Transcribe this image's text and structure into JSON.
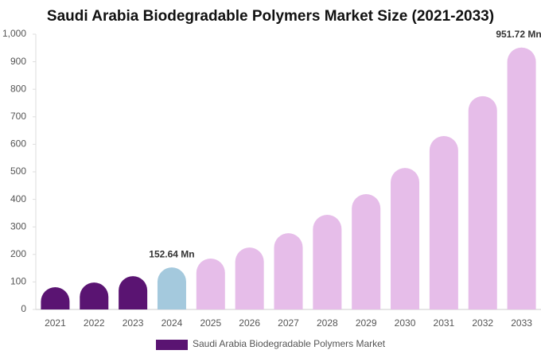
{
  "chart_data": {
    "type": "bar",
    "title": "Saudi Arabia Biodegradable Polymers Market Size (2021-2033)",
    "categories": [
      "2021",
      "2022",
      "2023",
      "2024",
      "2025",
      "2026",
      "2027",
      "2028",
      "2029",
      "2030",
      "2031",
      "2032",
      "2033"
    ],
    "series": [
      {
        "name": "Saudi Arabia Biodegradable Polymers Market",
        "color": "#5a1472",
        "colors": [
          "#5a1472",
          "#5a1472",
          "#5a1472",
          "#a4c9dd",
          "#e6bde9",
          "#e6bde9",
          "#e6bde9",
          "#e6bde9",
          "#e6bde9",
          "#e6bde9",
          "#e6bde9",
          "#e6bde9",
          "#e6bde9"
        ],
        "values": [
          81,
          98,
          121,
          152.64,
          185,
          225,
          277,
          344,
          419,
          514,
          630,
          775,
          951.72
        ],
        "value_labels": [
          null,
          null,
          null,
          "152.64 Mn",
          null,
          null,
          null,
          null,
          null,
          null,
          null,
          null,
          "951.72 Mn"
        ]
      }
    ],
    "ylim": [
      0,
      1000
    ],
    "yticks": [
      0,
      100,
      200,
      300,
      400,
      500,
      600,
      700,
      800,
      900,
      {
        "value": 1000,
        "label": "1,000"
      }
    ]
  }
}
